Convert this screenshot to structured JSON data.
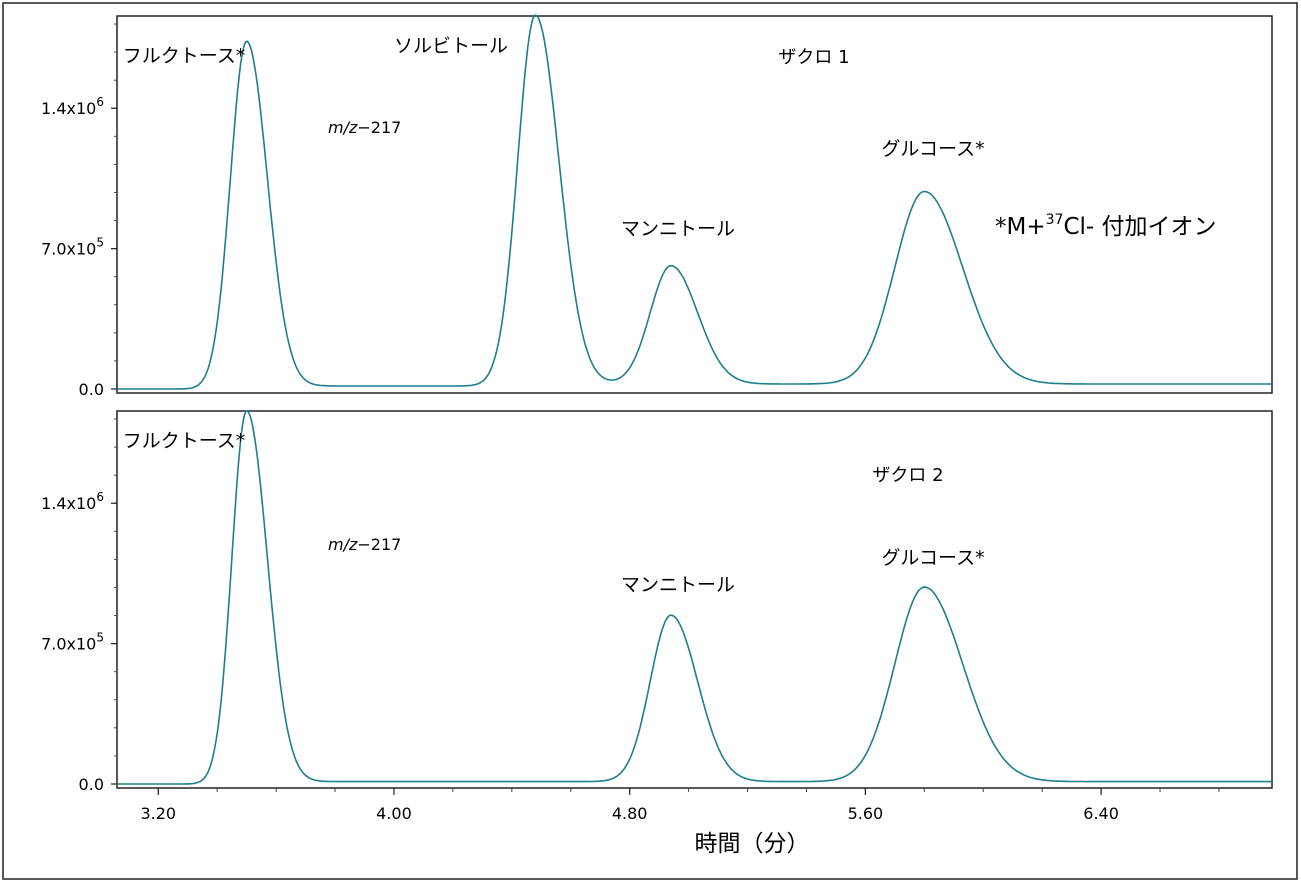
{
  "chart_data": [
    {
      "type": "line",
      "panel_label": "ザクロ 1",
      "annotation_mz_prefix": "m/z",
      "annotation_mz_value": "−217",
      "note": {
        "prefix": "*M+",
        "sup": "37",
        "suffix": "Cl- 付加イオン"
      },
      "xlim": [
        3.06,
        6.98
      ],
      "ylim": [
        -20000,
        1860000
      ],
      "y_ticks": [
        {
          "value": 0,
          "label": "0.0",
          "exp": ""
        },
        {
          "value": 700000,
          "label": "7.0x10",
          "exp": "5"
        },
        {
          "value": 1400000,
          "label": "1.4x10",
          "exp": "6"
        }
      ],
      "color": "#1f7e8c",
      "baseline": {
        "x_start": 3.06,
        "x_end": 6.98,
        "level": 0
      },
      "peaks": [
        {
          "label": "フルクトース*",
          "rt": 3.5,
          "height": 1720000
        },
        {
          "label": "ソルビトール",
          "rt": 4.48,
          "height": 1840000
        },
        {
          "label": "マンニトール",
          "rt": 4.94,
          "height": 590000
        },
        {
          "label": "グルコース*",
          "rt": 5.8,
          "height": 960000
        }
      ]
    },
    {
      "type": "line",
      "panel_label": "ザクロ 2",
      "annotation_mz_prefix": "m/z",
      "annotation_mz_value": "−217",
      "xlim": [
        3.06,
        6.98
      ],
      "ylim": [
        -20000,
        1860000
      ],
      "y_ticks": [
        {
          "value": 0,
          "label": "0.0",
          "exp": ""
        },
        {
          "value": 700000,
          "label": "7.0x10",
          "exp": "5"
        },
        {
          "value": 1400000,
          "label": "1.4x10",
          "exp": "6"
        }
      ],
      "color": "#1f7e8c",
      "peaks": [
        {
          "label": "フルクトース*",
          "rt": 3.5,
          "height": 1850000
        },
        {
          "label": "マンニトール",
          "rt": 4.94,
          "height": 830000
        },
        {
          "label": "グルコース*",
          "rt": 5.8,
          "height": 970000
        }
      ],
      "x_ticks": [
        {
          "value": 3.2,
          "label": "3.20"
        },
        {
          "value": 4.0,
          "label": "4.00"
        },
        {
          "value": 4.8,
          "label": "4.80"
        },
        {
          "value": 5.6,
          "label": "5.60"
        },
        {
          "value": 6.4,
          "label": "6.40"
        }
      ],
      "xlabel": "時間（分）"
    }
  ]
}
